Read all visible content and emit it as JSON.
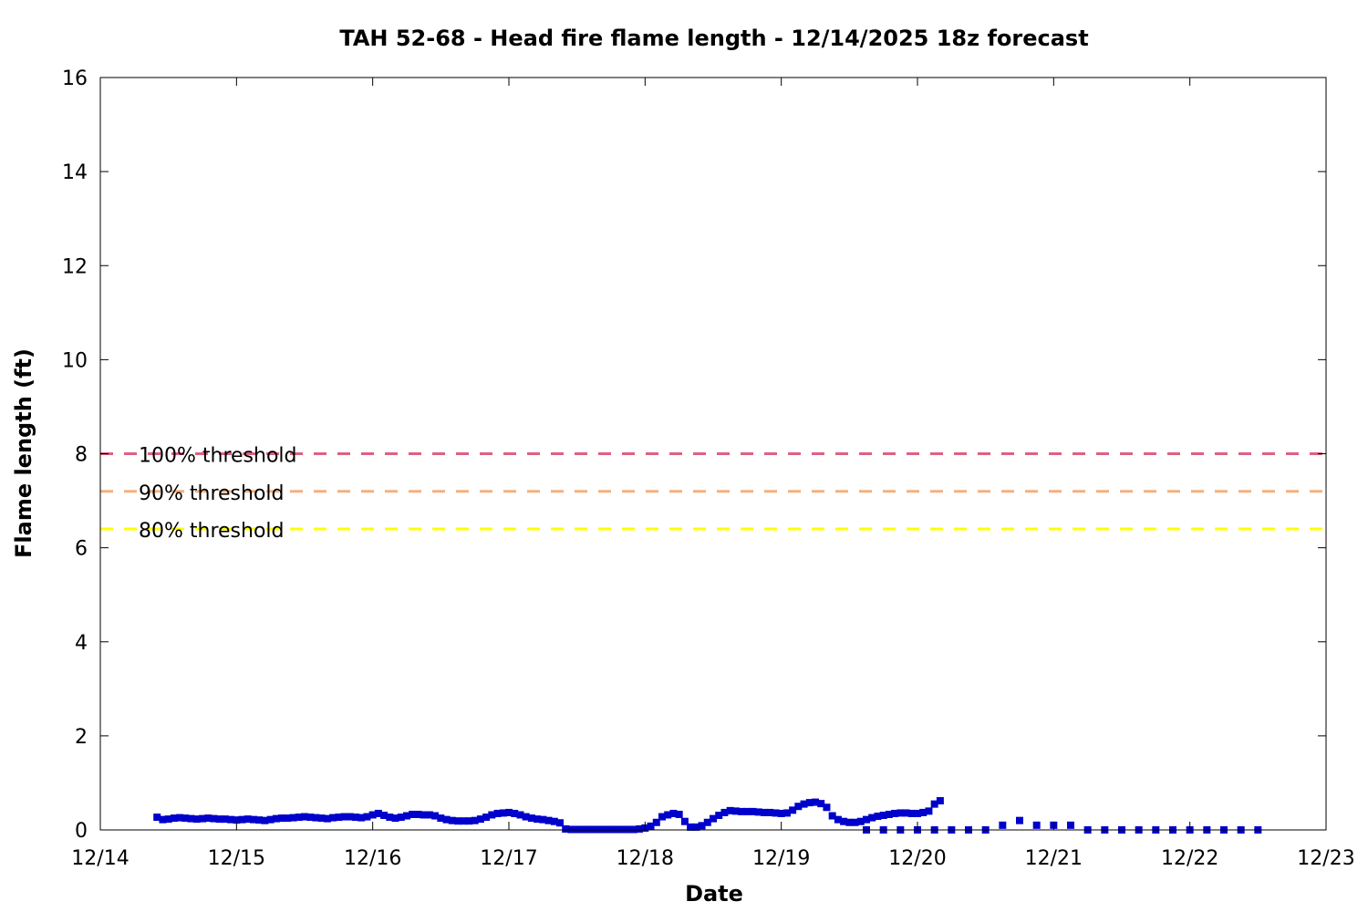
{
  "chart_data": {
    "type": "scatter",
    "title": "TAH 52-68 - Head fire flame length - 12/14/2025 18z forecast",
    "xlabel": "Date",
    "ylabel": "Flame length (ft)",
    "xlim": [
      "2025-12-14",
      "2025-12-23"
    ],
    "ylim": [
      0,
      16
    ],
    "x_tick_labels": [
      "12/14",
      "12/15",
      "12/16",
      "12/17",
      "12/18",
      "12/19",
      "12/20",
      "12/21",
      "12/22",
      "12/23"
    ],
    "y_tick_labels": [
      "0",
      "2",
      "4",
      "6",
      "8",
      "10",
      "12",
      "14",
      "16"
    ],
    "grid": false,
    "marker_color": "#0000cc",
    "thresholds": [
      {
        "label": "100% threshold",
        "value": 8.0,
        "color": "#e06080"
      },
      {
        "label": "90% threshold",
        "value": 7.2,
        "color": "#f4b080"
      },
      {
        "label": "80% threshold",
        "value": 6.4,
        "color": "#ffff00"
      }
    ],
    "series": [
      {
        "x_start": "2025-12-14 10:00",
        "x_step_hours": 1,
        "values": [
          0.27,
          0.22,
          0.23,
          0.25,
          0.26,
          0.25,
          0.24,
          0.23,
          0.24,
          0.25,
          0.24,
          0.23,
          0.23,
          0.22,
          0.21,
          0.22,
          0.23,
          0.22,
          0.21,
          0.2,
          0.22,
          0.24,
          0.25,
          0.25,
          0.26,
          0.27,
          0.28,
          0.27,
          0.26,
          0.25,
          0.24,
          0.26,
          0.27,
          0.28,
          0.28,
          0.27,
          0.26,
          0.28,
          0.32,
          0.35,
          0.31,
          0.27,
          0.25,
          0.27,
          0.3,
          0.33,
          0.33,
          0.32,
          0.32,
          0.3,
          0.25,
          0.22,
          0.2,
          0.19,
          0.19,
          0.19,
          0.2,
          0.23,
          0.27,
          0.32,
          0.35,
          0.36,
          0.37,
          0.35,
          0.32,
          0.28,
          0.25,
          0.23,
          0.22,
          0.2,
          0.18,
          0.15,
          0.02,
          0.01,
          0.01,
          0.01,
          0.01,
          0.01,
          0.01,
          0.01,
          0.01,
          0.01,
          0.01,
          0.01,
          0.01,
          0.02,
          0.04,
          0.08,
          0.16,
          0.28,
          0.32,
          0.35,
          0.33,
          0.18,
          0.06,
          0.06,
          0.09,
          0.16,
          0.24,
          0.31,
          0.37,
          0.41,
          0.4,
          0.39,
          0.39,
          0.39,
          0.38,
          0.37,
          0.37,
          0.36,
          0.35,
          0.36,
          0.42,
          0.5,
          0.55,
          0.58,
          0.59,
          0.56,
          0.48,
          0.3,
          0.22,
          0.18,
          0.16,
          0.16,
          0.18,
          0.22,
          0.26,
          0.29,
          0.31,
          0.33,
          0.35,
          0.36,
          0.36,
          0.35,
          0.35,
          0.37,
          0.4,
          0.55,
          0.62
        ]
      },
      {
        "x_start": "2025-12-19 15:00",
        "x_step_hours": 3,
        "values": [
          0.0,
          0.0,
          0.0,
          0.0,
          0.0,
          0.0,
          0.0,
          0.0,
          0.1,
          0.2,
          0.1,
          0.1,
          0.1,
          0.0,
          0.0,
          0.0,
          0.0,
          0.0,
          0.0,
          0.0,
          0.0,
          0.0,
          0.0,
          0.0
        ]
      }
    ]
  }
}
